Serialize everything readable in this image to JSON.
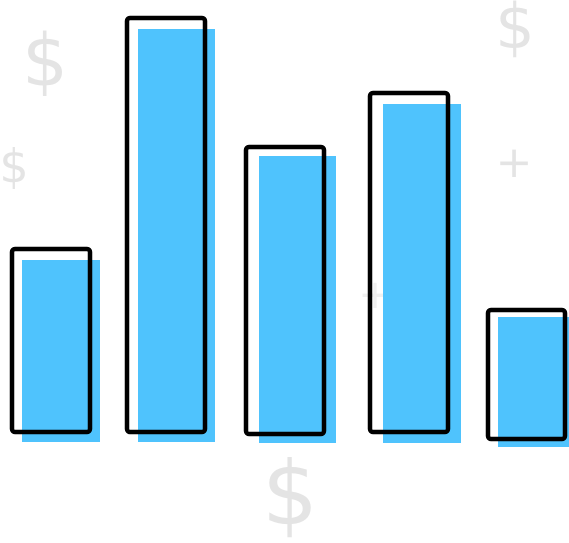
{
  "background_symbols": [
    "$",
    "$",
    "$",
    "$",
    "+",
    "+"
  ]
}
